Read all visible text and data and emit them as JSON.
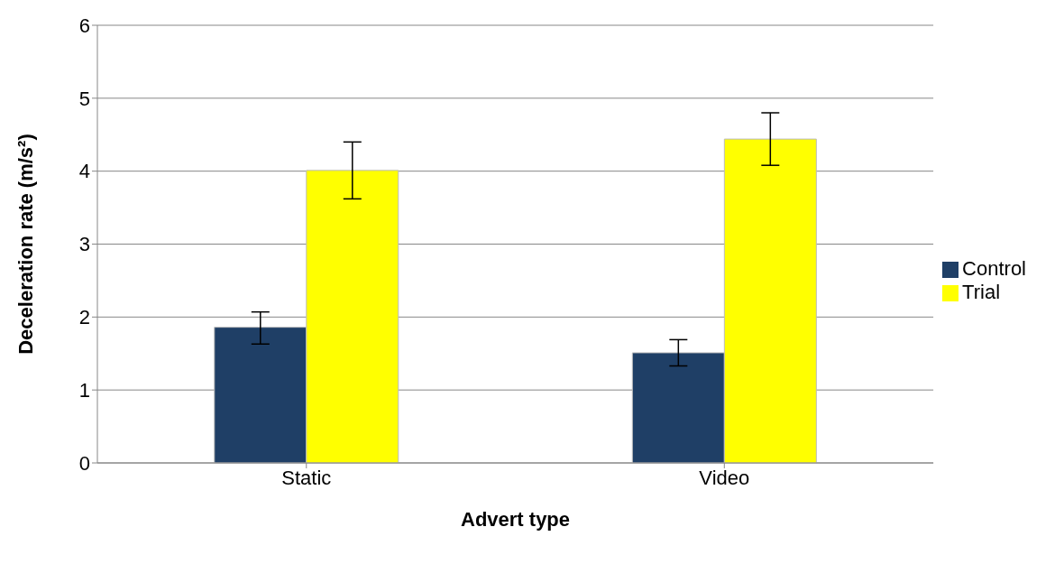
{
  "chart_data": {
    "type": "bar",
    "xlabel": "Advert type",
    "ylabel": "Deceleration rate (m/s²)",
    "categories": [
      "Static",
      "Video"
    ],
    "series": [
      {
        "name": "Control",
        "color": "#1f3f66",
        "values": [
          1.86,
          1.51
        ],
        "errors": [
          [
            1.63,
            2.07
          ],
          [
            1.33,
            1.69
          ]
        ]
      },
      {
        "name": "Trial",
        "color": "#ffff00",
        "values": [
          4.01,
          4.44
        ],
        "errors": [
          [
            3.62,
            4.4
          ],
          [
            4.08,
            4.8
          ]
        ]
      }
    ],
    "ylim": [
      0,
      6
    ],
    "yticks": [
      0,
      1,
      2,
      3,
      4,
      5,
      6
    ],
    "grid": "y",
    "legend": "right"
  }
}
